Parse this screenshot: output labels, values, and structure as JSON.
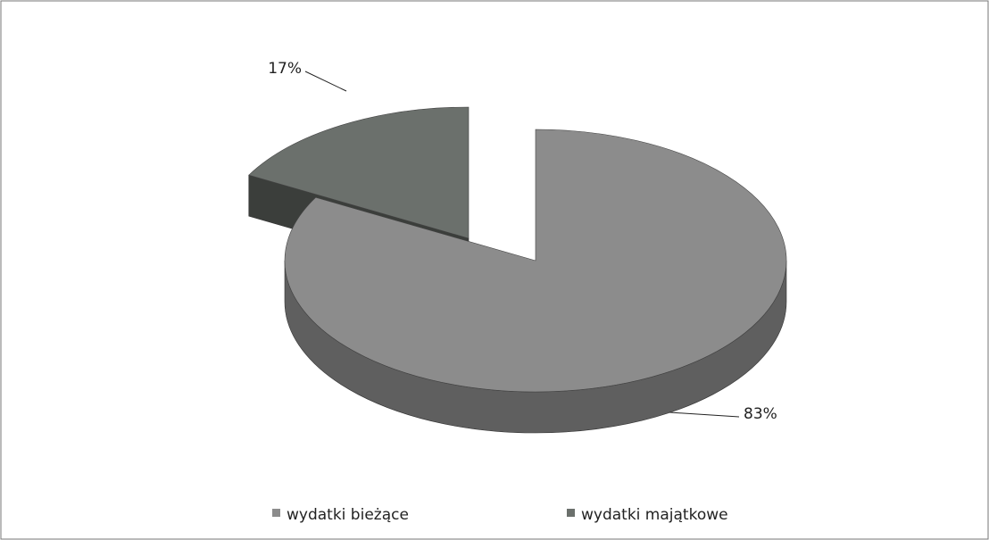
{
  "chart_data": {
    "type": "pie",
    "categories": [
      "wydatki bieżące",
      "wydatki majątkowe"
    ],
    "values": [
      83,
      17
    ],
    "value_labels": [
      "83%",
      "17%"
    ],
    "colors": [
      "#8c8c8c",
      "#6b706c"
    ],
    "legend": "bottom"
  }
}
